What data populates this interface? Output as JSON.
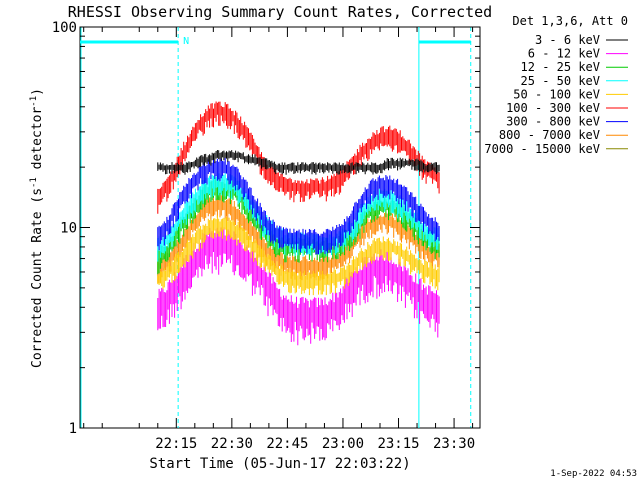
{
  "chart_data": {
    "type": "line",
    "title": "RHESSI Observing Summary Count Rates, Corrected",
    "xlabel": "Start Time (05-Jun-17 22:03:22)",
    "ylabel_main": "Corrected Count Rate (s",
    "ylabel_sup1": "-1",
    "ylabel_mid": " detector",
    "ylabel_sup2": "-1",
    "ylabel_end": ")",
    "yscale": "log",
    "ylim": [
      1,
      100
    ],
    "xlim_minutes": [
      -11,
      97
    ],
    "x_tick_labels": [
      "22:15",
      "22:30",
      "22:45",
      "23:00",
      "23:15",
      "23:30"
    ],
    "x_tick_minutes": [
      15,
      30,
      45,
      60,
      75,
      90
    ],
    "y_tick_labels": [
      "1",
      "10",
      "100"
    ],
    "legend_title": "Det 1,3,6, Att 0",
    "legend_placement": "top-right outside",
    "footer": "1-Sep-2022 04:53",
    "markers": {
      "night_label": "N",
      "night_start_min": 15.5,
      "night_end_min": 80.5,
      "night2_start_min": 94.5,
      "bar_left": [
        -11,
        15.5
      ],
      "bar_right": [
        80.5,
        94.5
      ],
      "solid_line_min": [
        -11,
        80.5
      ]
    },
    "series_x_minutes": [
      10,
      12,
      14,
      16,
      18,
      20,
      22,
      24,
      26,
      28,
      30,
      32,
      34,
      36,
      38,
      40,
      42,
      44,
      46,
      48,
      50,
      52,
      54,
      56,
      58,
      60,
      62,
      64,
      66,
      68,
      70,
      72,
      74,
      76,
      78,
      80,
      82,
      84,
      86
    ],
    "series": [
      {
        "name": "3 - 6 keV",
        "color": "#000000",
        "values": [
          20,
          20,
          20,
          20,
          20,
          21,
          22,
          22,
          23,
          23,
          23,
          23,
          22,
          22,
          21,
          21,
          20,
          20,
          20,
          20,
          20,
          20,
          20,
          20,
          20,
          20,
          20,
          20,
          20,
          20,
          20,
          21,
          21,
          21,
          21,
          21,
          20,
          20,
          20
        ]
      },
      {
        "name": "6 - 12 keV",
        "color": "#ff00ff",
        "values": [
          4,
          4.3,
          4.8,
          5.5,
          6.2,
          7,
          7.8,
          8.2,
          8.4,
          8.3,
          8,
          7.5,
          7,
          6.4,
          5.8,
          5,
          4.4,
          4,
          3.8,
          3.7,
          3.7,
          3.7,
          3.7,
          3.8,
          4,
          4.4,
          5,
          5.5,
          6,
          6.3,
          6.4,
          6.3,
          6,
          5.6,
          5.2,
          4.8,
          4.4,
          4.2,
          4
        ]
      },
      {
        "name": "12 - 25 keV",
        "color": "#00cc00",
        "values": [
          7,
          7.5,
          8.5,
          10,
          11.5,
          13,
          14.5,
          15.5,
          16,
          16,
          15.5,
          14.5,
          13,
          11.5,
          10,
          9,
          8.5,
          8,
          8,
          8,
          8,
          8,
          8,
          8,
          8,
          8.5,
          9,
          10,
          11.5,
          12.5,
          13,
          13,
          12.5,
          12,
          11,
          10,
          9,
          8.5,
          8
        ]
      },
      {
        "name": "25 - 50 keV",
        "color": "#00ffff",
        "values": [
          8,
          8.5,
          9.5,
          11,
          12.5,
          14,
          15.5,
          16.5,
          17,
          17,
          16.5,
          15.5,
          14,
          12.5,
          11,
          10,
          9.3,
          8.8,
          8.6,
          8.5,
          8.5,
          8.5,
          8.5,
          8.5,
          8.6,
          9,
          9.8,
          11,
          12.5,
          13.5,
          14,
          14,
          13.5,
          12.8,
          11.8,
          10.8,
          9.8,
          9.2,
          8.8
        ]
      },
      {
        "name": "50 - 100 keV",
        "color": "#ffcc00",
        "values": [
          5.5,
          5.8,
          6.3,
          7,
          7.8,
          8.6,
          9.4,
          10,
          10.3,
          10.3,
          10,
          9.5,
          8.8,
          8,
          7.3,
          6.6,
          6.1,
          5.8,
          5.6,
          5.5,
          5.5,
          5.5,
          5.5,
          5.5,
          5.6,
          5.8,
          6.2,
          6.8,
          7.4,
          7.9,
          8.1,
          8.1,
          7.9,
          7.5,
          7,
          6.6,
          6.2,
          6,
          5.8
        ]
      },
      {
        "name": "100 - 300 keV",
        "color": "#ff0000",
        "values": [
          14,
          15.5,
          18,
          22,
          26,
          30,
          34,
          37,
          38.5,
          38,
          36,
          33,
          29,
          25,
          21.5,
          19,
          17.5,
          16.5,
          16,
          16,
          16,
          16,
          16,
          16.2,
          16.8,
          18,
          20,
          22.5,
          25,
          27,
          28.5,
          29,
          28.5,
          27,
          24.5,
          22,
          20,
          18.5,
          17.5
        ]
      },
      {
        "name": "300 - 800 keV",
        "color": "#0000ff",
        "values": [
          9,
          9.8,
          11.5,
          13.5,
          15.5,
          17.5,
          19,
          20,
          20.5,
          20,
          19,
          17.5,
          15.5,
          13.5,
          11.5,
          10.2,
          9.5,
          9,
          8.8,
          8.8,
          8.8,
          8.8,
          8.8,
          8.9,
          9.2,
          9.8,
          11,
          12.8,
          14.5,
          15.8,
          16.5,
          16.5,
          16,
          15,
          13.8,
          12.5,
          11.2,
          10.3,
          9.8
        ]
      },
      {
        "name": "800 - 7000 keV",
        "color": "#ff8800",
        "values": [
          6.2,
          6.6,
          7.3,
          8.3,
          9.5,
          10.8,
          12,
          12.8,
          13.2,
          13,
          12.4,
          11.5,
          10.4,
          9.3,
          8.3,
          7.5,
          7,
          6.7,
          6.6,
          6.5,
          6.5,
          6.5,
          6.5,
          6.6,
          6.8,
          7.2,
          7.9,
          8.8,
          9.8,
          10.5,
          10.9,
          10.9,
          10.5,
          10,
          9.3,
          8.6,
          8,
          7.5,
          7.2
        ]
      },
      {
        "name": "7000 - 15000 keV",
        "color": "#888800",
        "values": []
      }
    ]
  }
}
